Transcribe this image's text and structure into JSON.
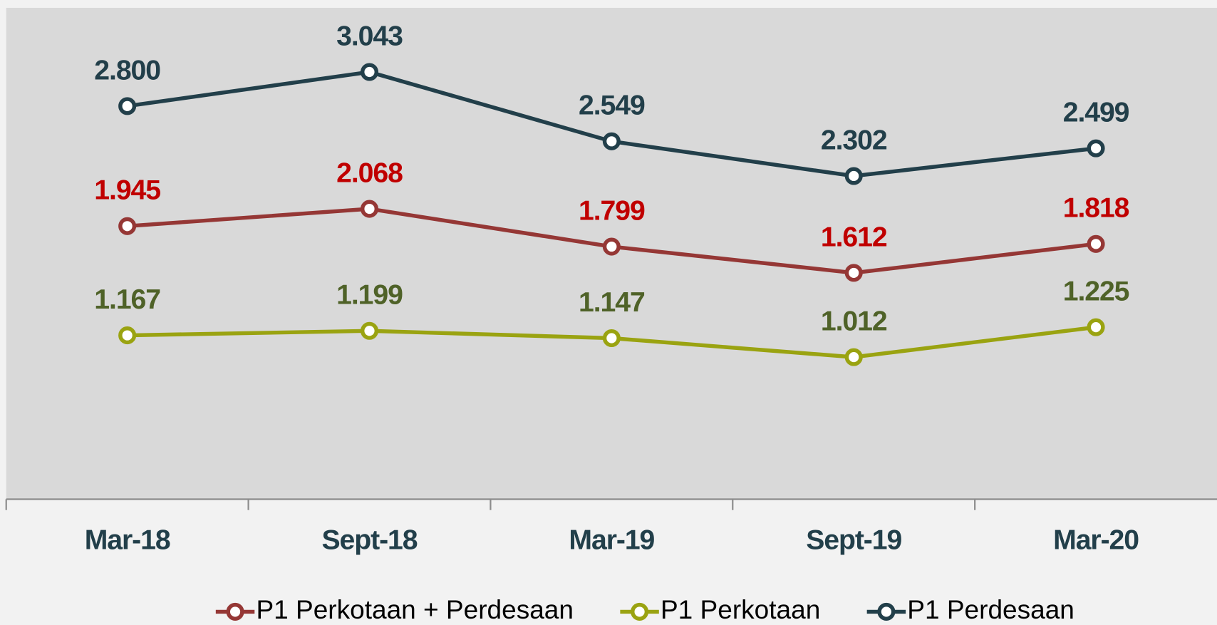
{
  "chart_data": {
    "type": "line",
    "categories": [
      "Mar-18",
      "Sept-18",
      "Mar-19",
      "Sept-19",
      "Mar-20"
    ],
    "series": [
      {
        "name": "P1 Perkotaan + Perdesaan",
        "color": "#953735",
        "label_color": "#c00000",
        "values": [
          1.945,
          2.068,
          1.799,
          1.612,
          1.818
        ],
        "value_labels": [
          "1.945",
          "2.068",
          "1.799",
          "1.612",
          "1.818"
        ]
      },
      {
        "name": "P1 Perkotaan",
        "color": "#9aa311",
        "label_color": "#4f6228",
        "values": [
          1.167,
          1.199,
          1.147,
          1.012,
          1.225
        ],
        "value_labels": [
          "1.167",
          "1.199",
          "1.147",
          "1.012",
          "1.225"
        ]
      },
      {
        "name": "P1 Perdesaan",
        "color": "#223f4a",
        "label_color": "#223f4a",
        "values": [
          2.8,
          3.043,
          2.549,
          2.302,
          2.499
        ],
        "value_labels": [
          "2.800",
          "3.043",
          "2.549",
          "2.302",
          "2.499"
        ]
      }
    ],
    "ylim": [
      0,
      3.5
    ],
    "legend": "bottom"
  }
}
